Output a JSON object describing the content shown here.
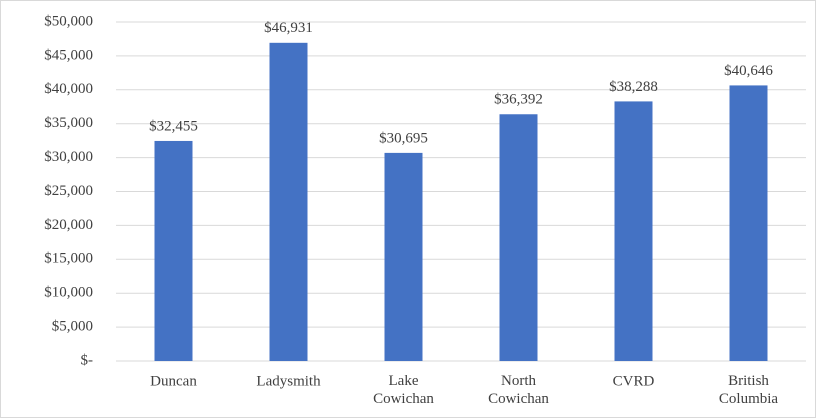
{
  "chart_data": {
    "type": "bar",
    "categories": [
      "Duncan",
      "Ladysmith",
      "Lake Cowichan",
      "North Cowichan",
      "CVRD",
      "British Columbia"
    ],
    "values": [
      32455,
      46931,
      30695,
      36392,
      38288,
      40646
    ],
    "value_labels": [
      "$32,455",
      "$46,931",
      "$30,695",
      "$36,392",
      "$38,288",
      "$40,646"
    ],
    "color": "#4472c4",
    "ylim": [
      0,
      50000
    ],
    "yticks": [
      {
        "value": 0,
        "label": "$-"
      },
      {
        "value": 5000,
        "label": "$5,000"
      },
      {
        "value": 10000,
        "label": "$10,000"
      },
      {
        "value": 15000,
        "label": "$15,000"
      },
      {
        "value": 20000,
        "label": "$20,000"
      },
      {
        "value": 25000,
        "label": "$25,000"
      },
      {
        "value": 30000,
        "label": "$30,000"
      },
      {
        "value": 35000,
        "label": "$35,000"
      },
      {
        "value": 40000,
        "label": "$40,000"
      },
      {
        "value": 45000,
        "label": "$45,000"
      },
      {
        "value": 50000,
        "label": "$50,000"
      }
    ],
    "grid": true
  }
}
